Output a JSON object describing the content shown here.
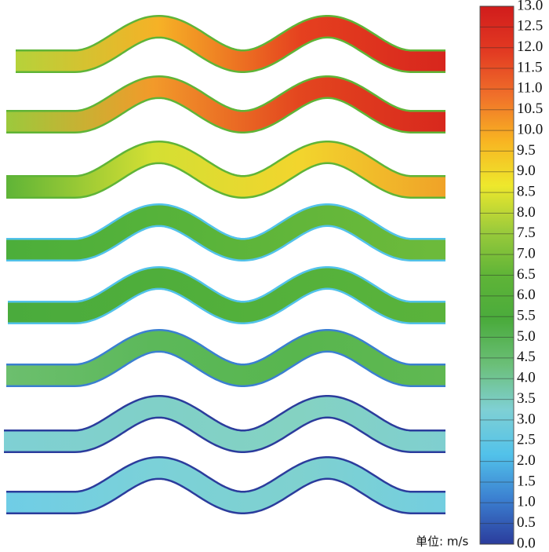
{
  "chart_data": {
    "type": "colorbar",
    "unit_label": "单位: m/s",
    "clim": [
      0,
      13
    ],
    "colormap": [
      "#2b3c9c",
      "#3b7fd0",
      "#52c2ea",
      "#7fd0d4",
      "#6bbf78",
      "#4aab3c",
      "#5fb437",
      "#9ccb3b",
      "#eee82c",
      "#f8b422",
      "#f0702a",
      "#e23a22",
      "#d11c1c"
    ],
    "cticks": [
      {
        "value": 0,
        "label": "0.0"
      },
      0.5,
      {
        "value": 1,
        "label": "1.0"
      },
      1.5,
      {
        "value": 2,
        "label": "2.0"
      },
      2.5,
      {
        "value": 3,
        "label": "3.0"
      },
      3.5,
      {
        "value": 4,
        "label": "4.0"
      },
      4.5,
      {
        "value": 5,
        "label": "5.0"
      },
      5.5,
      {
        "value": 6,
        "label": "6.0"
      },
      6.5,
      {
        "value": 7,
        "label": "7.0"
      },
      7.5,
      {
        "value": 8,
        "label": "8.0"
      },
      8.5,
      {
        "value": 9,
        "label": "9.0"
      },
      9.5,
      {
        "value": 10,
        "label": "10.0"
      },
      10.5,
      {
        "value": 11,
        "label": "11.0"
      },
      11.5,
      {
        "value": 12,
        "label": "12.0"
      },
      12.5,
      {
        "value": 13,
        "label": "13.0"
      }
    ]
  }
}
